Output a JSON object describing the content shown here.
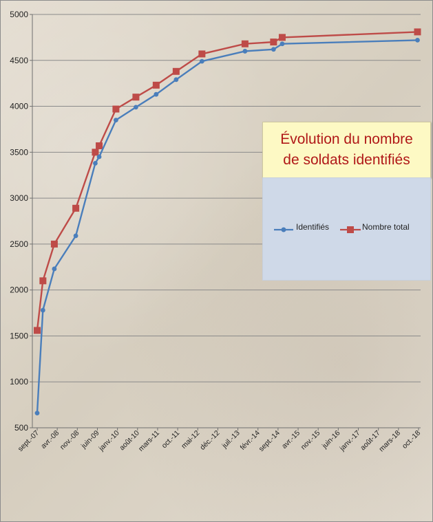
{
  "chart_data": {
    "type": "line",
    "title_lines": [
      "Évolution du nombre",
      "de soldats identifiés"
    ],
    "ylim": [
      500,
      5000
    ],
    "yticks": [
      500,
      1000,
      1500,
      2000,
      2500,
      3000,
      3500,
      4000,
      4500,
      5000
    ],
    "xlim": [
      "2007-09-01",
      "2018-10-01"
    ],
    "xticks": [
      "sept.-07",
      "avr.-08",
      "nov.-08",
      "juin-09",
      "janv.-10",
      "août-10",
      "mars-11",
      "oct.-11",
      "mai-12",
      "déc.-12",
      "juil.-13",
      "févr.-14",
      "sept.-14",
      "avr.-15",
      "nov.-15",
      "juin-16",
      "janv.-17",
      "août-17",
      "mars-18",
      "oct.-18"
    ],
    "grid": "horizontal",
    "legend_position": "right",
    "series": [
      {
        "name": "Identifiés",
        "color": "#4a7ebb",
        "marker": "circle",
        "x": [
          "2007-09-01",
          "2007-11-01",
          "2008-03-01",
          "2008-10-15",
          "2009-05-10",
          "2009-06-20",
          "2009-12-15",
          "2010-07-15",
          "2011-02-15",
          "2011-09-15",
          "2012-06-15",
          "2013-09-15",
          "2014-07-15",
          "2014-10-15",
          "2018-09-20"
        ],
        "values": [
          660,
          1780,
          2230,
          2590,
          3380,
          3450,
          3850,
          3990,
          4130,
          4290,
          4490,
          4600,
          4620,
          4680,
          4720
        ]
      },
      {
        "name": "Nombre total",
        "color": "#be4b48",
        "marker": "square",
        "x": [
          "2007-09-01",
          "2007-11-01",
          "2008-03-01",
          "2008-10-15",
          "2009-05-10",
          "2009-06-20",
          "2009-12-15",
          "2010-07-15",
          "2011-02-15",
          "2011-09-15",
          "2012-06-15",
          "2013-09-15",
          "2014-07-15",
          "2014-10-15",
          "2018-09-20"
        ],
        "values": [
          1560,
          2100,
          2500,
          2890,
          3500,
          3570,
          3970,
          4100,
          4230,
          4380,
          4570,
          4680,
          4700,
          4750,
          4810
        ]
      }
    ]
  }
}
